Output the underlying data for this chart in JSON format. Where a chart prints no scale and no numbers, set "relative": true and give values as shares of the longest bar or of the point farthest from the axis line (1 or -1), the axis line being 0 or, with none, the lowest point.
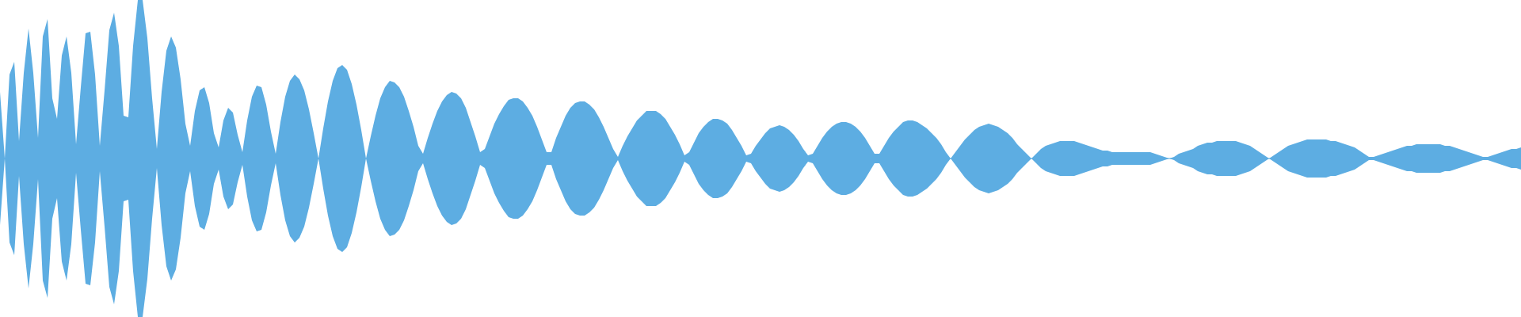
{
  "chart_data": {
    "type": "area",
    "relative": true,
    "categories": [
      null,
      null,
      null,
      null,
      null,
      null,
      null,
      null,
      null,
      null,
      null,
      null,
      null,
      null,
      null,
      null,
      null,
      null,
      null,
      null,
      null,
      null,
      null,
      null,
      null,
      null,
      null,
      null,
      null,
      null,
      null,
      null,
      null,
      null,
      null,
      null,
      null,
      null,
      null,
      null,
      null,
      null,
      null,
      null,
      null,
      null,
      null,
      null,
      null,
      null,
      null,
      null,
      null,
      null,
      null,
      null,
      null,
      null,
      null,
      null,
      null,
      null,
      null,
      null,
      null,
      null,
      null,
      null,
      null,
      null,
      null,
      null,
      null,
      null,
      null,
      null,
      null,
      null,
      null,
      null,
      null,
      null,
      null,
      null,
      null,
      null,
      null,
      null,
      null,
      null,
      null,
      null,
      null,
      null,
      null,
      null,
      null,
      null,
      null,
      null,
      null,
      null,
      null,
      null,
      null,
      null,
      null,
      null,
      null,
      null,
      null,
      null,
      null,
      null,
      null,
      null,
      null,
      null,
      null,
      null,
      null,
      null,
      null,
      null,
      null,
      null,
      null,
      null,
      null,
      null,
      null,
      null,
      null,
      null,
      null,
      null,
      null,
      null,
      null,
      null,
      null,
      null,
      null,
      null,
      null,
      null,
      null,
      null,
      null,
      null,
      null,
      null,
      null,
      null,
      null,
      null,
      null,
      null,
      null,
      null,
      null,
      null,
      null,
      null,
      null,
      null,
      null,
      null,
      null,
      null,
      null,
      null,
      null,
      null,
      null,
      null,
      null,
      null,
      null,
      null,
      null,
      null,
      null,
      null,
      null,
      null,
      null,
      null,
      null,
      null,
      null,
      null,
      null,
      null,
      null,
      null,
      null,
      null,
      null,
      null,
      null,
      null,
      null,
      null,
      null,
      null,
      null,
      null,
      null,
      null,
      null,
      null,
      null,
      null,
      null,
      null,
      null,
      null,
      null,
      null,
      null,
      null,
      null,
      null,
      null,
      null,
      null,
      null,
      null,
      null,
      null,
      null,
      null,
      null,
      null,
      null,
      null,
      null,
      null,
      null,
      null,
      null,
      null,
      null,
      null,
      null,
      null,
      null,
      null,
      null,
      null,
      null,
      null,
      null,
      null,
      null,
      null,
      null,
      null,
      null,
      null,
      null,
      null,
      null,
      null,
      null,
      null,
      null,
      null,
      null,
      null,
      null,
      null,
      null,
      null,
      null,
      null,
      null,
      null,
      null,
      null,
      null,
      null,
      null,
      null,
      null,
      null,
      null,
      null,
      null,
      null,
      null,
      null,
      null,
      null,
      null,
      null,
      null,
      null,
      null,
      null,
      null,
      null,
      null,
      null,
      null,
      null,
      null,
      null,
      null,
      null,
      null,
      null,
      null,
      null,
      null,
      null,
      null,
      null,
      null,
      null
    ],
    "ref_lines": [
      {
        "axis": "y",
        "value": 0,
        "color": "#5dade2"
      }
    ],
    "series": [
      {
        "color": "#5dade2",
        "values": [
          0.42,
          0,
          0.53,
          0.61,
          0.11,
          0.54,
          0.82,
          0.54,
          0.13,
          0.77,
          0.88,
          0.38,
          0.25,
          0.65,
          0.77,
          0.54,
          0.09,
          0.45,
          0.79,
          0.8,
          0.53,
          0.08,
          0.43,
          0.81,
          0.92,
          0.71,
          0.27,
          0.26,
          0.71,
          1,
          1,
          0.76,
          0.38,
          0.06,
          0.42,
          0.68,
          0.77,
          0.7,
          0.5,
          0.22,
          0.08,
          0.3,
          0.43,
          0.45,
          0.35,
          0.16,
          0.07,
          0.24,
          0.32,
          0.29,
          0.15,
          0.04,
          0.24,
          0.39,
          0.46,
          0.45,
          0.34,
          0.17,
          0.03,
          0.23,
          0.39,
          0.49,
          0.53,
          0.5,
          0.43,
          0.31,
          0.16,
          0,
          0.19,
          0.36,
          0.49,
          0.57,
          0.59,
          0.56,
          0.47,
          0.34,
          0.18,
          0,
          0.14,
          0.27,
          0.38,
          0.45,
          0.49,
          0.48,
          0.45,
          0.39,
          0.3,
          0.2,
          0.08,
          0.03,
          0.13,
          0.22,
          0.3,
          0.36,
          0.4,
          0.42,
          0.41,
          0.38,
          0.32,
          0.23,
          0.14,
          0.04,
          0.06,
          0.14,
          0.22,
          0.28,
          0.33,
          0.37,
          0.38,
          0.38,
          0.36,
          0.32,
          0.27,
          0.2,
          0.12,
          0.04,
          0.04,
          0.13,
          0.2,
          0.27,
          0.32,
          0.35,
          0.36,
          0.36,
          0.34,
          0.31,
          0.26,
          0.2,
          0.13,
          0.06,
          0.01,
          0.08,
          0.14,
          0.19,
          0.24,
          0.27,
          0.3,
          0.3,
          0.3,
          0.28,
          0.25,
          0.2,
          0.15,
          0.09,
          0.02,
          0.04,
          0.1,
          0.16,
          0.2,
          0.23,
          0.25,
          0.25,
          0.24,
          0.22,
          0.18,
          0.13,
          0.08,
          0.02,
          0.03,
          0.08,
          0.12,
          0.16,
          0.19,
          0.2,
          0.21,
          0.2,
          0.18,
          0.15,
          0.11,
          0.06,
          0.02,
          0.03,
          0.08,
          0.13,
          0.17,
          0.2,
          0.22,
          0.23,
          0.23,
          0.22,
          0.2,
          0.17,
          0.13,
          0.08,
          0.03,
          0.03,
          0.08,
          0.13,
          0.17,
          0.2,
          0.23,
          0.24,
          0.24,
          0.23,
          0.21,
          0.19,
          0.16,
          0.13,
          0.09,
          0.04,
          0,
          0.04,
          0.08,
          0.12,
          0.15,
          0.18,
          0.2,
          0.21,
          0.22,
          0.21,
          0.2,
          0.18,
          0.16,
          0.13,
          0.09,
          0.06,
          0.03,
          0,
          0.03,
          0.06,
          0.08,
          0.09,
          0.1,
          0.11,
          0.11,
          0.11,
          0.11,
          0.1,
          0.09,
          0.08,
          0.07,
          0.06,
          0.05,
          0.05,
          0.04,
          0.04,
          0.04,
          0.04,
          0.04,
          0.04,
          0.04,
          0.04,
          0.04,
          0.03,
          0.02,
          0.01,
          0,
          0.01,
          0.03,
          0.04,
          0.05,
          0.06,
          0.08,
          0.09,
          0.1,
          0.1,
          0.11,
          0.11,
          0.11,
          0.11,
          0.11,
          0.1,
          0.09,
          0.08,
          0.06,
          0.04,
          0.02,
          0,
          0.02,
          0.04,
          0.06,
          0.08,
          0.09,
          0.1,
          0.11,
          0.12,
          0.12,
          0.12,
          0.12,
          0.12,
          0.11,
          0.11,
          0.1,
          0.09,
          0.08,
          0.07,
          0.05,
          0.03,
          0.01,
          0.01,
          0.02,
          0.03,
          0.04,
          0.05,
          0.06,
          0.07,
          0.08,
          0.08,
          0.09,
          0.09,
          0.09,
          0.09,
          0.09,
          0.09,
          0.08,
          0.08,
          0.07,
          0.06,
          0.05,
          0.04,
          0.03,
          0.02,
          0.01,
          0.01,
          0.02,
          0.03,
          0.04,
          0.05,
          0.06,
          0.06,
          0.07
        ]
      },
      {
        "color": "#5dade2",
        "values": [
          -0.42,
          0,
          -0.53,
          -0.61,
          -0.11,
          -0.54,
          -0.82,
          -0.54,
          -0.13,
          -0.77,
          -0.88,
          -0.38,
          -0.25,
          -0.65,
          -0.77,
          -0.54,
          -0.09,
          -0.45,
          -0.79,
          -0.8,
          -0.53,
          -0.08,
          -0.43,
          -0.81,
          -0.92,
          -0.71,
          -0.27,
          -0.26,
          -0.71,
          -1,
          -1,
          -0.76,
          -0.38,
          -0.06,
          -0.42,
          -0.68,
          -0.77,
          -0.7,
          -0.5,
          -0.22,
          -0.08,
          -0.3,
          -0.43,
          -0.45,
          -0.35,
          -0.16,
          -0.07,
          -0.24,
          -0.32,
          -0.29,
          -0.15,
          -0.04,
          -0.24,
          -0.39,
          -0.46,
          -0.45,
          -0.34,
          -0.17,
          -0.03,
          -0.23,
          -0.39,
          -0.49,
          -0.53,
          -0.5,
          -0.43,
          -0.31,
          -0.16,
          0,
          -0.19,
          -0.36,
          -0.49,
          -0.57,
          -0.59,
          -0.56,
          -0.47,
          -0.34,
          -0.18,
          0,
          -0.14,
          -0.27,
          -0.38,
          -0.45,
          -0.49,
          -0.48,
          -0.45,
          -0.39,
          -0.3,
          -0.2,
          -0.08,
          -0.03,
          -0.13,
          -0.22,
          -0.3,
          -0.36,
          -0.4,
          -0.42,
          -0.41,
          -0.38,
          -0.32,
          -0.23,
          -0.14,
          -0.04,
          -0.06,
          -0.14,
          -0.22,
          -0.28,
          -0.33,
          -0.37,
          -0.38,
          -0.38,
          -0.36,
          -0.32,
          -0.27,
          -0.2,
          -0.12,
          -0.04,
          -0.04,
          -0.13,
          -0.2,
          -0.27,
          -0.32,
          -0.35,
          -0.36,
          -0.36,
          -0.34,
          -0.31,
          -0.26,
          -0.2,
          -0.13,
          -0.06,
          -0.01,
          -0.08,
          -0.14,
          -0.19,
          -0.24,
          -0.27,
          -0.3,
          -0.3,
          -0.3,
          -0.28,
          -0.25,
          -0.2,
          -0.15,
          -0.09,
          -0.02,
          -0.04,
          -0.1,
          -0.16,
          -0.2,
          -0.23,
          -0.25,
          -0.25,
          -0.24,
          -0.22,
          -0.18,
          -0.13,
          -0.08,
          -0.02,
          -0.03,
          -0.08,
          -0.12,
          -0.16,
          -0.19,
          -0.2,
          -0.21,
          -0.2,
          -0.18,
          -0.15,
          -0.11,
          -0.06,
          -0.02,
          -0.03,
          -0.08,
          -0.13,
          -0.17,
          -0.2,
          -0.22,
          -0.23,
          -0.23,
          -0.22,
          -0.2,
          -0.17,
          -0.13,
          -0.08,
          -0.03,
          -0.03,
          -0.08,
          -0.13,
          -0.17,
          -0.2,
          -0.23,
          -0.24,
          -0.24,
          -0.23,
          -0.21,
          -0.19,
          -0.16,
          -0.13,
          -0.09,
          -0.04,
          0,
          -0.04,
          -0.08,
          -0.12,
          -0.15,
          -0.18,
          -0.2,
          -0.21,
          -0.22,
          -0.21,
          -0.2,
          -0.18,
          -0.16,
          -0.13,
          -0.09,
          -0.06,
          -0.03,
          0,
          -0.03,
          -0.06,
          -0.08,
          -0.09,
          -0.1,
          -0.11,
          -0.11,
          -0.11,
          -0.11,
          -0.1,
          -0.09,
          -0.08,
          -0.07,
          -0.06,
          -0.05,
          -0.05,
          -0.04,
          -0.04,
          -0.04,
          -0.04,
          -0.04,
          -0.04,
          -0.04,
          -0.04,
          -0.04,
          -0.03,
          -0.02,
          -0.01,
          0,
          -0.01,
          -0.03,
          -0.04,
          -0.05,
          -0.06,
          -0.08,
          -0.09,
          -0.1,
          -0.1,
          -0.11,
          -0.11,
          -0.11,
          -0.11,
          -0.11,
          -0.1,
          -0.09,
          -0.08,
          -0.06,
          -0.04,
          -0.02,
          0,
          -0.02,
          -0.04,
          -0.06,
          -0.08,
          -0.09,
          -0.1,
          -0.11,
          -0.12,
          -0.12,
          -0.12,
          -0.12,
          -0.12,
          -0.11,
          -0.11,
          -0.1,
          -0.09,
          -0.08,
          -0.07,
          -0.05,
          -0.03,
          -0.01,
          -0.01,
          -0.02,
          -0.03,
          -0.04,
          -0.05,
          -0.06,
          -0.07,
          -0.08,
          -0.08,
          -0.09,
          -0.09,
          -0.09,
          -0.09,
          -0.09,
          -0.09,
          -0.08,
          -0.08,
          -0.07,
          -0.06,
          -0.05,
          -0.04,
          -0.03,
          -0.02,
          -0.01,
          -0.01,
          -0.02,
          -0.03,
          -0.04,
          -0.05,
          -0.06,
          -0.06,
          -0.07
        ]
      }
    ]
  }
}
